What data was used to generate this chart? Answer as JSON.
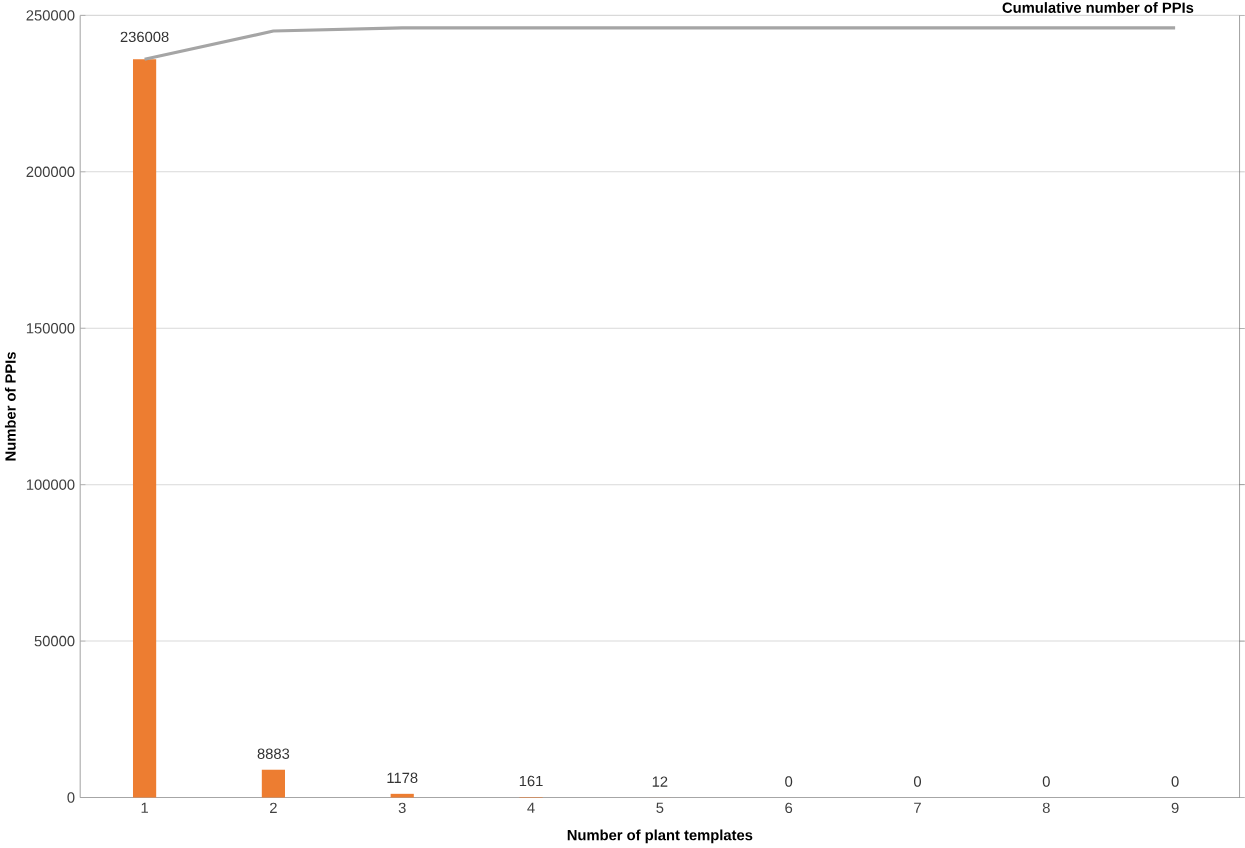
{
  "chart_data": {
    "type": "bar",
    "xlabel": "Number of plant templates",
    "ylabel": "Number of PPIs",
    "categories": [
      "1",
      "2",
      "3",
      "4",
      "5",
      "6",
      "7",
      "8",
      "9"
    ],
    "series": [
      {
        "color": "#ed7d31",
        "values": [
          236008,
          8883,
          1178,
          161,
          12,
          0,
          0,
          0,
          0
        ],
        "value_labels": [
          "236008",
          "8883",
          "1178",
          "161",
          "12",
          "0",
          "0",
          "0",
          "0"
        ]
      },
      {
        "type": "line",
        "name": "Cumulative number of PPIs",
        "color": "#a5a5a5",
        "values": [
          236000,
          245000,
          246000,
          246000,
          246000,
          246000,
          246000,
          246000,
          246000
        ]
      }
    ],
    "ylim": [
      0,
      250000
    ],
    "yticks": [
      0,
      50000,
      100000,
      150000,
      200000,
      250000
    ],
    "grid": "y",
    "marker": "none",
    "line_style": "solid"
  }
}
